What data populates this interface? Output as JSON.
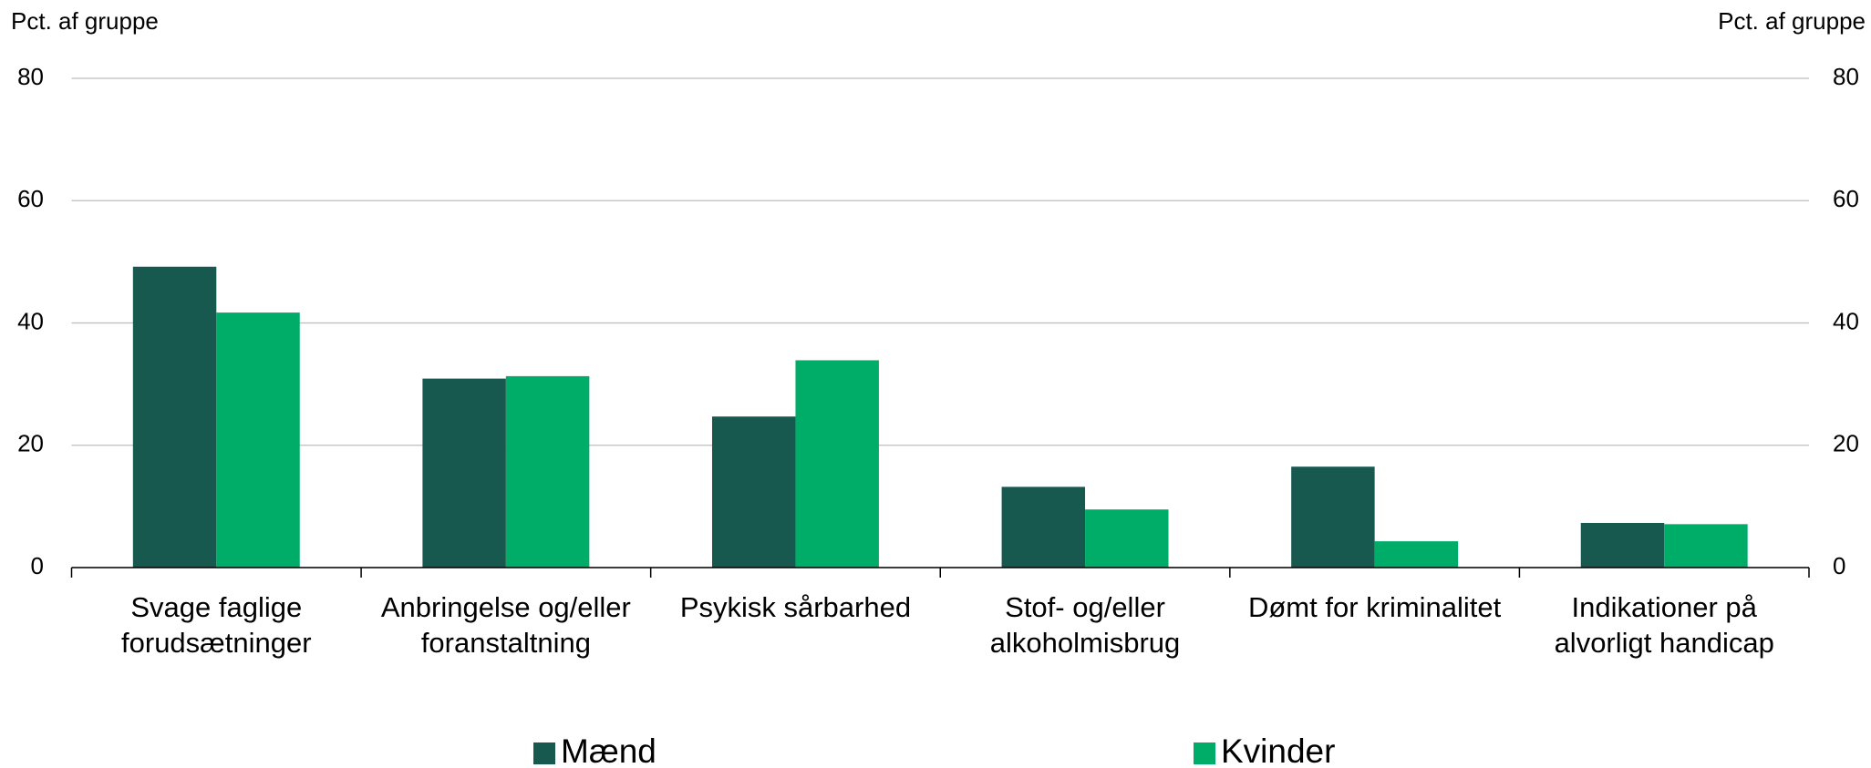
{
  "chart_data": {
    "type": "bar",
    "ylabel": "Pct. af gruppe",
    "y2label": "Pct. af gruppe",
    "categories": [
      "Svage faglige forudsætninger",
      "Anbringelse og/eller foranstaltning",
      "Psykisk sårbarhed",
      "Stof- og/eller alkoholmisbrug",
      "Dømt for kriminalitet",
      "Indikationer på alvorligt handicap"
    ],
    "series": [
      {
        "name": "Mænd",
        "color": "#17584f",
        "values": [
          49.2,
          30.9,
          24.7,
          13.2,
          16.5,
          7.3
        ]
      },
      {
        "name": "Kvinder",
        "color": "#00ad68",
        "values": [
          41.7,
          31.3,
          33.9,
          9.5,
          4.3,
          7.1
        ]
      }
    ],
    "ylim": [
      0,
      80
    ],
    "yticks": [
      0,
      20,
      40,
      60,
      80
    ],
    "y2lim": [
      0,
      80
    ],
    "y2ticks": [
      0,
      20,
      40,
      60,
      80
    ],
    "grid": true,
    "legend": "bottom"
  }
}
